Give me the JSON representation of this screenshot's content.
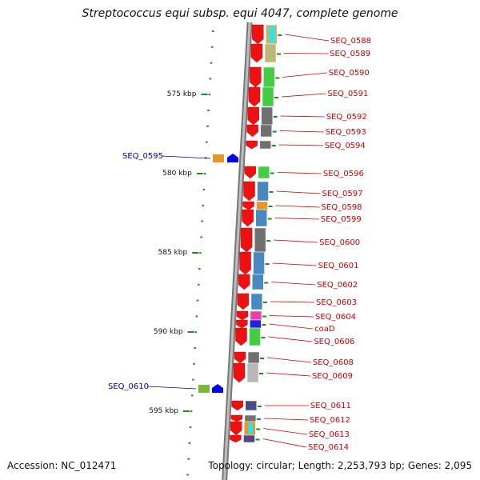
{
  "title": "Streptococcus equi subsp. equi 4047, complete genome",
  "accession": "Accession: NC_012471",
  "topology": "Topology: circular; Length: 2,253,793 bp; Genes: 2,095",
  "colors": {
    "cds_arrow": "#ee1111",
    "label_right": "#cc0000",
    "label_left": "#0000aa",
    "backbone": "#999999",
    "tick": "#228822"
  },
  "scale": {
    "unit": "kbp",
    "labels": [
      {
        "kbp": 575,
        "text": "575 kbp"
      },
      {
        "kbp": 580,
        "text": "580 kbp"
      },
      {
        "kbp": 585,
        "text": "585 kbp"
      },
      {
        "kbp": 590,
        "text": "590 kbp"
      },
      {
        "kbp": 595,
        "text": "595 kbp"
      }
    ]
  },
  "genes_right": [
    {
      "label": "SEQ_0588",
      "color": "#bdb876",
      "accent": "#22e6f0"
    },
    {
      "label": "SEQ_0589",
      "color": "#bdb876"
    },
    {
      "label": "SEQ_0590",
      "color": "#44cc44"
    },
    {
      "label": "SEQ_0591",
      "color": "#44cc44"
    },
    {
      "label": "SEQ_0592",
      "color": "#707070"
    },
    {
      "label": "SEQ_0593",
      "color": "#707070"
    },
    {
      "label": "SEQ_0594",
      "color": "#707070"
    },
    {
      "label": "SEQ_0596",
      "color": "#44cc44"
    },
    {
      "label": "SEQ_0597",
      "color": "#4a88c0"
    },
    {
      "label": "SEQ_0598",
      "color": "#e8962a"
    },
    {
      "label": "SEQ_0599",
      "color": "#4a88c0"
    },
    {
      "label": "SEQ_0600",
      "color": "#707070"
    },
    {
      "label": "SEQ_0601",
      "color": "#4a88c0"
    },
    {
      "label": "SEQ_0602",
      "color": "#4a88c0"
    },
    {
      "label": "SEQ_0603",
      "color": "#4a88c0"
    },
    {
      "label": "SEQ_0604",
      "color": "#e83fa8"
    },
    {
      "label": "coaD",
      "color": "#2222dd"
    },
    {
      "label": "SEQ_0606",
      "color": "#44cc44"
    },
    {
      "label": "SEQ_0608",
      "color": "#707070"
    },
    {
      "label": "SEQ_0609",
      "color": "#b8b8b8"
    },
    {
      "label": "SEQ_0611",
      "color": "#4a4a8a"
    },
    {
      "label": "SEQ_0612",
      "color": "#707070"
    },
    {
      "label": "SEQ_0613",
      "color": "#e8962a",
      "accent": "#22e6f0"
    },
    {
      "label": "SEQ_0614",
      "color": "#4a4a8a"
    }
  ],
  "genes_left": [
    {
      "label": "SEQ_0595",
      "color": "#e8962a",
      "arrow_color": "#0000ee"
    },
    {
      "label": "SEQ_0610",
      "color": "#7ab83a",
      "arrow_color": "#0000ee"
    }
  ]
}
